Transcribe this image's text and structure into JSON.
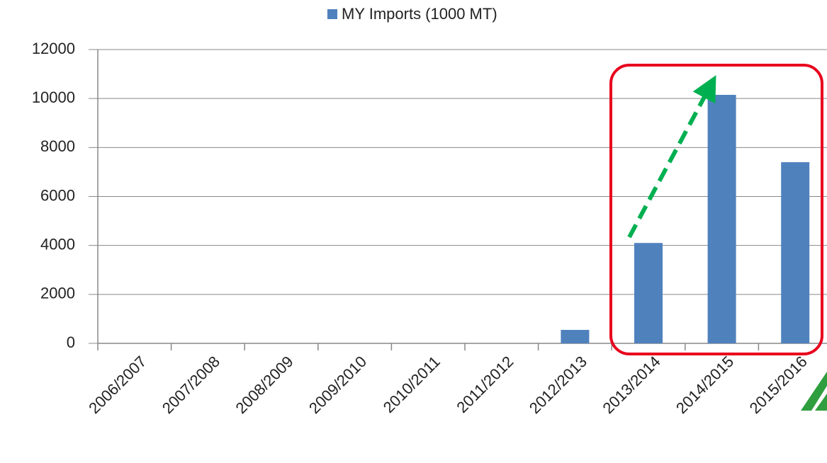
{
  "chart_data": {
    "type": "bar",
    "categories": [
      "2006/2007",
      "2007/2008",
      "2008/2009",
      "2009/2010",
      "2010/2011",
      "2011/2012",
      "2012/2013",
      "2013/2014",
      "2014/2015",
      "2015/2016"
    ],
    "series": [
      {
        "name": "MY Imports (1000 MT)",
        "color": "#4f81bd",
        "values": [
          0,
          0,
          0,
          0,
          0,
          0,
          550,
          4100,
          10150,
          7400
        ]
      }
    ],
    "ylim": [
      0,
      12000
    ],
    "yticks": [
      0,
      2000,
      4000,
      6000,
      8000,
      10000,
      12000
    ],
    "grid": true,
    "legend": "top"
  }
}
